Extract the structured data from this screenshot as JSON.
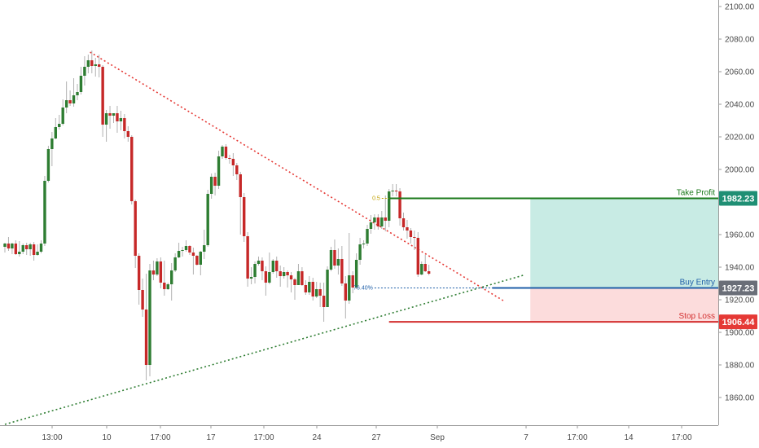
{
  "chart_data": {
    "type": "candlestick",
    "title": "",
    "xlabel": "",
    "ylabel": "",
    "ylim": [
      1843,
      2104
    ],
    "y_ticks": [
      1860,
      1880,
      1900,
      1920,
      1940,
      1960,
      1980,
      2000,
      2020,
      2040,
      2060,
      2080,
      2100
    ],
    "y_tick_labels": [
      "1860.00",
      "1880.00",
      "1900.00",
      "1920.00",
      "1940.00",
      "1960.00",
      "1980.00",
      "2000.00",
      "2020.00",
      "2040.00",
      "2060.00",
      "2080.00",
      "2100.00"
    ],
    "x_tick_labels": [
      "13:00",
      "10",
      "17:00",
      "17",
      "17:00",
      "24",
      "27",
      "Sep",
      "7",
      "17:00",
      "14",
      "17:00"
    ],
    "grid": false,
    "colors": {
      "up": "#2e7d32",
      "down": "#c62828",
      "wick": "#b0b0b0",
      "background": "#ffffff",
      "axis_text": "#4a4a4a"
    },
    "candles": [
      [
        1952.5,
        1954.5,
        1949.0,
        1955.0
      ],
      [
        1954.5,
        1951.5,
        1950.0,
        1958.5
      ],
      [
        1951.5,
        1954.5,
        1948.0,
        1955.0
      ],
      [
        1954.5,
        1948.0,
        1947.5,
        1956.5
      ],
      [
        1948.0,
        1949.5,
        1946.5,
        1956.0
      ],
      [
        1949.5,
        1953.5,
        1948.0,
        1954.5
      ],
      [
        1953.5,
        1951.0,
        1947.5,
        1955.0
      ],
      [
        1951.0,
        1954.0,
        1947.0,
        1955.0
      ],
      [
        1954.0,
        1947.5,
        1944.0,
        1955.5
      ],
      [
        1947.5,
        1949.5,
        1947.0,
        1954.0
      ],
      [
        1949.5,
        1954.5,
        1948.5,
        1956.5
      ],
      [
        1954.5,
        1993.0,
        1953.0,
        1996.0
      ],
      [
        1993.0,
        2012.5,
        1992.0,
        2014.5
      ],
      [
        2012.5,
        2019.0,
        2002.0,
        2023.0
      ],
      [
        2019.0,
        2026.0,
        2018.5,
        2031.5
      ],
      [
        2026.0,
        2028.0,
        2024.5,
        2033.5
      ],
      [
        2028.0,
        2038.0,
        2027.0,
        2043.0
      ],
      [
        2038.0,
        2042.5,
        2034.5,
        2054.0
      ],
      [
        2042.5,
        2040.5,
        2039.0,
        2048.5
      ],
      [
        2040.5,
        2045.5,
        2038.5,
        2056.0
      ],
      [
        2045.5,
        2047.5,
        2042.5,
        2052.5
      ],
      [
        2047.5,
        2057.5,
        2046.0,
        2063.0
      ],
      [
        2057.5,
        2063.0,
        2051.5,
        2069.5
      ],
      [
        2063.0,
        2067.0,
        2059.0,
        2070.5
      ],
      [
        2067.0,
        2063.5,
        2059.0,
        2073.0
      ],
      [
        2063.5,
        2064.5,
        2057.0,
        2068.5
      ],
      [
        2064.5,
        2063.0,
        2056.5,
        2070.5
      ],
      [
        2063.0,
        2027.5,
        2020.0,
        2064.0
      ],
      [
        2027.5,
        2034.5,
        2017.0,
        2036.5
      ],
      [
        2034.5,
        2033.0,
        2025.0,
        2039.0
      ],
      [
        2033.0,
        2034.5,
        2028.5,
        2034.5
      ],
      [
        2034.5,
        2029.5,
        2022.5,
        2039.0
      ],
      [
        2029.5,
        2031.5,
        2024.0,
        2036.0
      ],
      [
        2031.5,
        2023.5,
        2019.0,
        2034.0
      ],
      [
        2023.5,
        2020.0,
        2017.0,
        2026.5
      ],
      [
        2020.0,
        1980.5,
        1978.5,
        2021.0
      ],
      [
        1980.5,
        1947.0,
        1939.5,
        1981.5
      ],
      [
        1947.0,
        1926.0,
        1917.0,
        1948.5
      ],
      [
        1926.0,
        1914.0,
        1909.5,
        1933.0
      ],
      [
        1914.0,
        1880.0,
        1870.5,
        1936.0
      ],
      [
        1880.0,
        1938.0,
        1873.0,
        1942.0
      ],
      [
        1938.0,
        1935.5,
        1932.0,
        1944.0
      ],
      [
        1935.5,
        1943.5,
        1934.5,
        1945.5
      ],
      [
        1943.5,
        1930.5,
        1927.0,
        1946.0
      ],
      [
        1930.5,
        1926.5,
        1922.5,
        1944.0
      ],
      [
        1926.5,
        1929.5,
        1926.0,
        1930.5
      ],
      [
        1929.5,
        1938.0,
        1919.5,
        1942.5
      ],
      [
        1938.0,
        1946.0,
        1937.0,
        1948.5
      ],
      [
        1946.0,
        1950.0,
        1945.5,
        1955.0
      ],
      [
        1950.0,
        1950.5,
        1946.5,
        1952.5
      ],
      [
        1950.5,
        1953.0,
        1949.5,
        1956.5
      ],
      [
        1953.0,
        1949.0,
        1947.5,
        1953.5
      ],
      [
        1949.0,
        1947.0,
        1935.5,
        1952.0
      ],
      [
        1947.0,
        1941.5,
        1941.0,
        1947.5
      ],
      [
        1941.5,
        1949.5,
        1935.0,
        1950.0
      ],
      [
        1949.5,
        1953.5,
        1945.0,
        1963.0
      ],
      [
        1953.5,
        1985.0,
        1952.5,
        1987.5
      ],
      [
        1985.0,
        1995.5,
        1982.0,
        1997.5
      ],
      [
        1995.5,
        1990.0,
        1984.0,
        1998.0
      ],
      [
        1990.0,
        2008.0,
        1988.0,
        2011.5
      ],
      [
        2008.0,
        2014.0,
        2006.5,
        2015.0
      ],
      [
        2014.0,
        2007.0,
        2006.0,
        2015.5
      ],
      [
        2007.0,
        2006.5,
        2003.5,
        2009.0
      ],
      [
        2006.5,
        2002.5,
        1996.0,
        2010.0
      ],
      [
        2002.5,
        1997.0,
        1993.5,
        2004.0
      ],
      [
        1997.0,
        1983.0,
        1960.0,
        1998.5
      ],
      [
        1983.0,
        1959.0,
        1955.5,
        1985.5
      ],
      [
        1959.0,
        1933.0,
        1928.0,
        1961.5
      ],
      [
        1933.0,
        1934.0,
        1929.5,
        1940.0
      ],
      [
        1934.0,
        1942.0,
        1930.0,
        1943.5
      ],
      [
        1942.0,
        1944.0,
        1941.0,
        1946.5
      ],
      [
        1944.0,
        1937.5,
        1932.0,
        1946.0
      ],
      [
        1937.5,
        1930.5,
        1922.5,
        1940.5
      ],
      [
        1930.5,
        1937.0,
        1929.5,
        1949.0
      ],
      [
        1937.0,
        1944.0,
        1936.0,
        1945.0
      ],
      [
        1944.0,
        1937.5,
        1933.5,
        1946.5
      ],
      [
        1937.5,
        1934.5,
        1928.0,
        1941.0
      ],
      [
        1934.5,
        1937.0,
        1933.0,
        1940.0
      ],
      [
        1937.0,
        1935.0,
        1927.5,
        1938.0
      ],
      [
        1935.0,
        1932.5,
        1924.5,
        1937.0
      ],
      [
        1932.5,
        1929.0,
        1920.0,
        1933.5
      ],
      [
        1929.0,
        1937.5,
        1929.0,
        1942.0
      ],
      [
        1937.5,
        1929.0,
        1928.5,
        1940.0
      ],
      [
        1929.0,
        1924.5,
        1923.0,
        1932.0
      ],
      [
        1924.5,
        1931.0,
        1923.0,
        1934.5
      ],
      [
        1931.0,
        1922.0,
        1919.5,
        1933.5
      ],
      [
        1922.0,
        1926.5,
        1921.0,
        1931.0
      ],
      [
        1926.5,
        1922.5,
        1915.5,
        1930.5
      ],
      [
        1922.5,
        1915.5,
        1906.5,
        1930.5
      ],
      [
        1915.5,
        1938.5,
        1915.5,
        1940.5
      ],
      [
        1938.5,
        1950.5,
        1937.5,
        1952.5
      ],
      [
        1950.5,
        1941.0,
        1939.0,
        1957.0
      ],
      [
        1941.0,
        1945.0,
        1935.5,
        1951.5
      ],
      [
        1945.0,
        1930.0,
        1928.5,
        1953.0
      ],
      [
        1930.0,
        1919.5,
        1908.5,
        1934.5
      ],
      [
        1919.5,
        1935.0,
        1917.5,
        1961.0
      ],
      [
        1935.0,
        1927.5,
        1924.0,
        1937.5
      ],
      [
        1927.5,
        1944.5,
        1926.5,
        1948.5
      ],
      [
        1944.5,
        1954.0,
        1941.5,
        1958.0
      ],
      [
        1954.0,
        1954.5,
        1951.5,
        1956.5
      ],
      [
        1954.5,
        1963.5,
        1953.0,
        1966.0
      ],
      [
        1963.5,
        1967.5,
        1960.5,
        1972.0
      ],
      [
        1967.5,
        1970.5,
        1963.0,
        1972.5
      ],
      [
        1970.5,
        1965.0,
        1963.0,
        1972.5
      ],
      [
        1965.0,
        1970.5,
        1963.5,
        1974.5
      ],
      [
        1970.5,
        1968.5,
        1962.0,
        1984.0
      ],
      [
        1968.5,
        1986.5,
        1964.5,
        1988.0
      ],
      [
        1986.5,
        1987.0,
        1983.5,
        1991.0
      ],
      [
        1987.0,
        1986.5,
        1983.5,
        1991.0
      ],
      [
        1986.5,
        1970.0,
        1965.5,
        1988.5
      ],
      [
        1970.0,
        1964.5,
        1962.5,
        1973.5
      ],
      [
        1964.5,
        1962.5,
        1957.5,
        1969.0
      ],
      [
        1962.5,
        1958.5,
        1954.5,
        1964.0
      ],
      [
        1958.5,
        1958.0,
        1950.5,
        1962.5
      ],
      [
        1958.0,
        1935.5,
        1934.0,
        1961.5
      ],
      [
        1935.5,
        1942.0,
        1935.0,
        1943.5
      ],
      [
        1942.0,
        1937.5,
        1937.0,
        1947.5
      ],
      [
        1937.5,
        1936.0,
        1935.0,
        1941.5
      ]
    ],
    "annotations": {
      "descending_trendline": {
        "from": [
          23.5,
          2072.0
        ],
        "to": [
          137.5,
          1919.5
        ]
      },
      "ascending_trendline": {
        "from": [
          0.0,
          1843.5
        ],
        "to": [
          143.0,
          1935.0
        ]
      },
      "fib_level_top_label": "0.5",
      "fib_level_top_value": 1982.23,
      "fib_level_bottom_label": "76.40%",
      "fib_level_bottom_value": 1927.23,
      "position_box": {
        "x_start": 145.0,
        "x_end": 197.0
      },
      "levels": [
        {
          "name": "Take Profit",
          "value": 1982.23,
          "price_label": "1982.23",
          "color": "#1b7a1b",
          "tag_color": "#1f8f74"
        },
        {
          "name": "Buy Entry",
          "value": 1927.23,
          "price_label": "1927.23",
          "color": "#1f5fa8",
          "tag_color": "#6a6e78"
        },
        {
          "name": "Stop Loss",
          "value": 1906.44,
          "price_label": "1906.44",
          "color": "#d32f2f",
          "tag_color": "#e53935"
        }
      ],
      "profit_zone_color": "#c8ebe4",
      "loss_zone_color": "#fcdcdc",
      "fib_line_color": "#c0a000"
    }
  }
}
